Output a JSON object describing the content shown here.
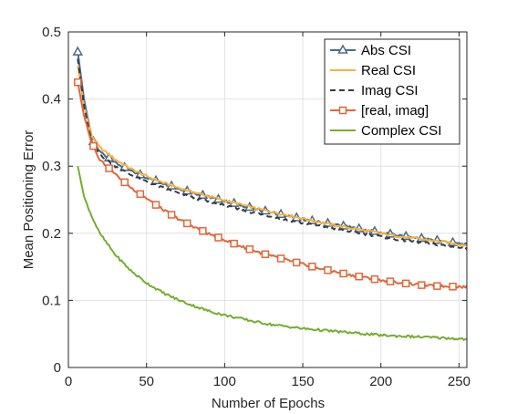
{
  "chart_data": {
    "type": "line",
    "title": "",
    "xlabel": "Number of Epochs",
    "ylabel": "Mean Positioning Error",
    "xlim": [
      0,
      255
    ],
    "ylim": [
      0,
      0.5
    ],
    "xticks": [
      0,
      50,
      100,
      150,
      200,
      250
    ],
    "yticks": [
      0,
      0.1,
      0.2,
      0.3,
      0.4,
      0.5
    ],
    "xtick_labels": [
      "0",
      "50",
      "100",
      "150",
      "200",
      "250"
    ],
    "ytick_labels": [
      "0",
      "0.1",
      "0.2",
      "0.3",
      "0.4",
      "0.5"
    ],
    "grid": true,
    "legend_position": "top-right",
    "x_start": 6,
    "x_end": 255,
    "series": [
      {
        "name": "Abs CSI",
        "color": "#4a6b8a",
        "line_style": "solid",
        "marker": "triangle",
        "marker_every": 10,
        "x": [
          6,
          10,
          15,
          20,
          30,
          40,
          50,
          60,
          70,
          80,
          90,
          100,
          110,
          120,
          130,
          140,
          150,
          160,
          170,
          180,
          190,
          200,
          210,
          220,
          230,
          240,
          255
        ],
        "values": [
          0.47,
          0.4,
          0.34,
          0.322,
          0.305,
          0.293,
          0.283,
          0.275,
          0.267,
          0.26,
          0.254,
          0.248,
          0.242,
          0.236,
          0.231,
          0.226,
          0.221,
          0.217,
          0.213,
          0.209,
          0.205,
          0.201,
          0.197,
          0.194,
          0.191,
          0.188,
          0.183
        ]
      },
      {
        "name": "Real CSI",
        "color": "#f5b244",
        "line_style": "solid",
        "marker": "none",
        "x": [
          6,
          10,
          15,
          20,
          30,
          40,
          50,
          60,
          70,
          80,
          90,
          100,
          110,
          120,
          130,
          140,
          150,
          160,
          170,
          180,
          190,
          200,
          210,
          220,
          230,
          240,
          255
        ],
        "values": [
          0.45,
          0.39,
          0.345,
          0.328,
          0.31,
          0.296,
          0.285,
          0.276,
          0.268,
          0.261,
          0.255,
          0.249,
          0.243,
          0.237,
          0.232,
          0.227,
          0.222,
          0.217,
          0.212,
          0.208,
          0.204,
          0.2,
          0.196,
          0.193,
          0.19,
          0.187,
          0.182
        ]
      },
      {
        "name": "Imag CSI",
        "color": "#333c4a",
        "line_style": "dashed",
        "marker": "none",
        "x": [
          6,
          10,
          15,
          20,
          30,
          40,
          50,
          60,
          70,
          80,
          90,
          100,
          110,
          120,
          130,
          140,
          150,
          160,
          170,
          180,
          190,
          200,
          210,
          220,
          230,
          240,
          255
        ],
        "values": [
          0.46,
          0.39,
          0.335,
          0.318,
          0.3,
          0.287,
          0.277,
          0.268,
          0.26,
          0.253,
          0.247,
          0.241,
          0.235,
          0.23,
          0.225,
          0.22,
          0.215,
          0.211,
          0.207,
          0.203,
          0.199,
          0.195,
          0.191,
          0.188,
          0.185,
          0.182,
          0.177
        ]
      },
      {
        "name": "[real, imag]",
        "color": "#e0673a",
        "line_style": "solid",
        "marker": "square",
        "marker_every": 10,
        "x": [
          6,
          10,
          15,
          20,
          30,
          40,
          50,
          60,
          70,
          80,
          90,
          100,
          110,
          120,
          130,
          140,
          150,
          160,
          170,
          180,
          190,
          200,
          210,
          220,
          230,
          240,
          255
        ],
        "values": [
          0.425,
          0.375,
          0.335,
          0.31,
          0.288,
          0.268,
          0.252,
          0.236,
          0.222,
          0.21,
          0.199,
          0.19,
          0.181,
          0.173,
          0.166,
          0.16,
          0.154,
          0.148,
          0.143,
          0.138,
          0.134,
          0.13,
          0.127,
          0.124,
          0.122,
          0.121,
          0.12
        ]
      },
      {
        "name": "Complex CSI",
        "color": "#77ac30",
        "line_style": "solid",
        "marker": "none",
        "x": [
          6,
          10,
          15,
          20,
          30,
          40,
          50,
          60,
          70,
          80,
          90,
          100,
          110,
          120,
          130,
          140,
          150,
          160,
          170,
          180,
          190,
          200,
          210,
          220,
          230,
          240,
          255
        ],
        "values": [
          0.3,
          0.255,
          0.225,
          0.2,
          0.168,
          0.144,
          0.126,
          0.112,
          0.101,
          0.092,
          0.084,
          0.078,
          0.073,
          0.068,
          0.064,
          0.061,
          0.058,
          0.056,
          0.054,
          0.052,
          0.05,
          0.048,
          0.047,
          0.046,
          0.045,
          0.044,
          0.042
        ]
      }
    ]
  }
}
